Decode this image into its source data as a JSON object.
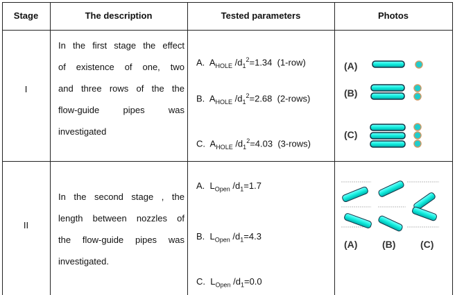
{
  "table": {
    "header": [
      "Stage",
      "The description",
      "Tested parameters",
      "Photos"
    ],
    "rows": [
      {
        "stage": "I",
        "description": [
          "In the first stage the effect",
          "of existence of one, two",
          "and three rows of the the",
          "flow-guide pipes was",
          "investigated"
        ],
        "params": [
          {
            "label": "A.",
            "sym": "A",
            "sub": "HOLE",
            "mid": " /d",
            "sub2": "1",
            "sup": "2",
            "rest": "=1.34  (1-row)"
          },
          {
            "label": "B.",
            "sym": "A",
            "sub": "HOLE",
            "mid": " /d",
            "sub2": "1",
            "sup": "2",
            "rest": "=2.68  (2-rows)"
          },
          {
            "label": "C.",
            "sym": "A",
            "sub": "HOLE",
            "mid": " /d",
            "sub2": "1",
            "sup": "2",
            "rest": "=4.03  (3-rows)"
          }
        ],
        "photo_labels": [
          "(A)",
          "(B)",
          "(C)"
        ]
      },
      {
        "stage": "II",
        "description": [
          "In the second stage , the",
          "length between nozzles of",
          "the flow-guide pipes was",
          "investigated."
        ],
        "params": [
          {
            "label": "A.",
            "sym": "L",
            "sub": "Open",
            "mid": " /d",
            "sub2": "1",
            "rest": "=1.7"
          },
          {
            "label": "B.",
            "sym": "L",
            "sub": "Open",
            "mid": " /d",
            "sub2": "1",
            "rest": "=4.3"
          },
          {
            "label": "C.",
            "sym": "L",
            "sub": "Open",
            "mid": " /d",
            "sub2": "1",
            "rest": "=0.0"
          }
        ],
        "photo_labels": [
          "(A)",
          "(B)",
          "(C)"
        ]
      }
    ]
  }
}
